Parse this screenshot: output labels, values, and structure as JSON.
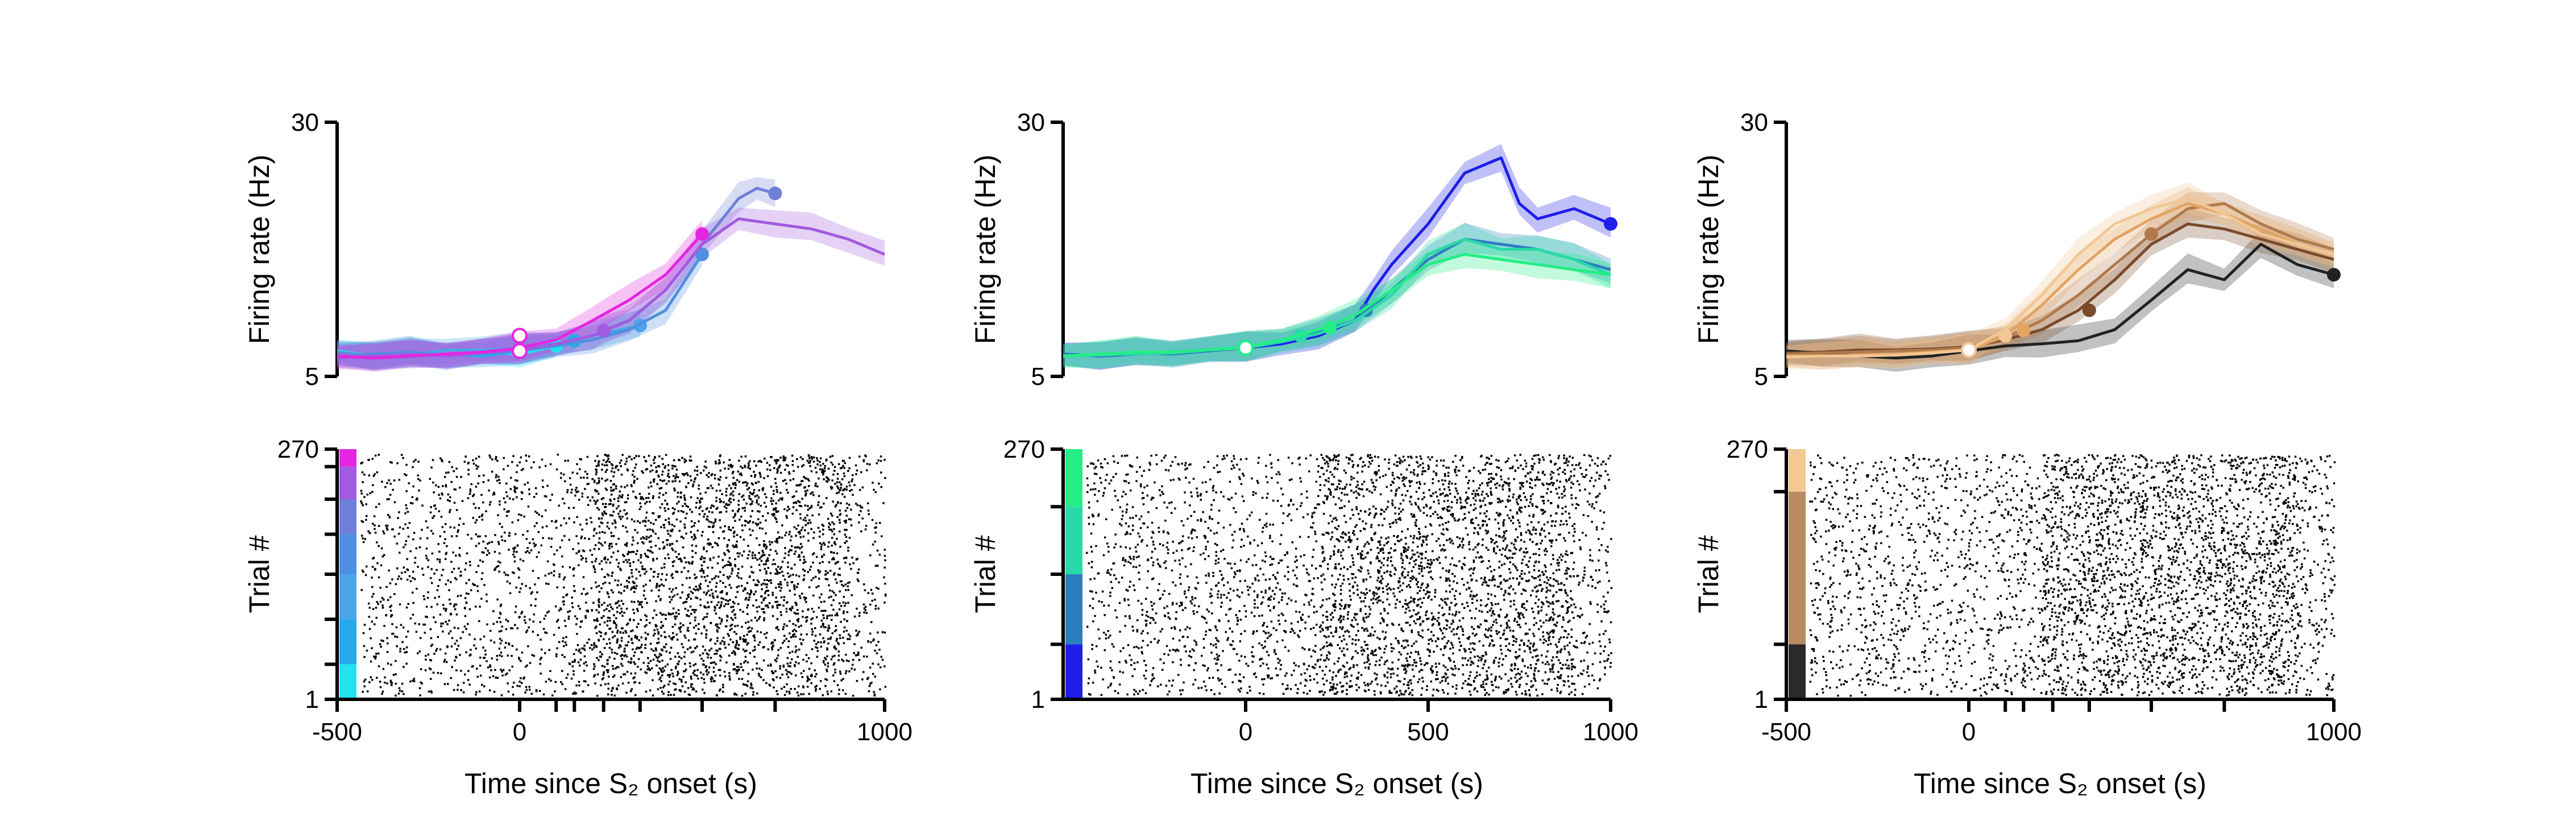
{
  "figure": {
    "panels": [
      {
        "id": "left",
        "psth": {
          "ylabel": "Firing rate (Hz)",
          "yticks": [
            "5",
            "30"
          ],
          "ylim": [
            5,
            30
          ],
          "xlim": [
            -500,
            1000
          ],
          "xtick_values": [
            -500,
            0,
            100,
            150,
            230,
            330,
            500,
            700,
            1000
          ],
          "series": [
            {
              "color": "#22e1f0",
              "end_ms": 100,
              "ts": [
                -500,
                -400,
                -300,
                -200,
                -100,
                0,
                100
              ],
              "rates": [
                7.5,
                7.0,
                7.3,
                7.0,
                7.4,
                7.2,
                8.0
              ],
              "marker": [
                100,
                8.0
              ]
            },
            {
              "color": "#28a9ea",
              "end_ms": 150,
              "ts": [
                -500,
                -400,
                -300,
                -200,
                -100,
                0,
                150
              ],
              "rates": [
                7.2,
                6.9,
                7.0,
                7.2,
                7.0,
                7.5,
                8.5
              ],
              "marker": [
                150,
                8.5
              ]
            },
            {
              "color": "#4aa4e6",
              "end_ms": 330,
              "ts": [
                -500,
                -400,
                -300,
                -200,
                -100,
                0,
                100,
                200,
                330
              ],
              "rates": [
                7.4,
                7.0,
                7.1,
                7.6,
                7.6,
                7.8,
                8.2,
                9.0,
                10.0
              ],
              "marker": [
                330,
                10.0
              ]
            },
            {
              "color": "#4f8fe0",
              "end_ms": 500,
              "ts": [
                -500,
                -400,
                -300,
                -200,
                -100,
                0,
                100,
                200,
                300,
                400,
                500
              ],
              "rates": [
                7.0,
                7.2,
                7.4,
                7.1,
                7.3,
                7.5,
                8.0,
                8.6,
                9.6,
                11.5,
                17.0
              ],
              "marker": [
                500,
                17.0
              ]
            },
            {
              "color": "#6f7fd8",
              "end_ms": 700,
              "ts": [
                -500,
                -400,
                -300,
                -200,
                -100,
                0,
                100,
                200,
                300,
                400,
                500,
                600,
                650,
                700
              ],
              "rates": [
                7.3,
                7.0,
                6.9,
                7.2,
                7.4,
                7.6,
                8.2,
                9.0,
                10.5,
                13.5,
                18.0,
                22.5,
                23.5,
                23.0
              ],
              "marker": [
                700,
                23.0
              ]
            },
            {
              "color": "#a25ae0",
              "end_ms": 1000,
              "ts": [
                -500,
                -400,
                -300,
                -200,
                -100,
                0,
                100,
                200,
                230,
                300,
                400,
                500,
                600,
                700,
                800,
                900,
                1000
              ],
              "rates": [
                6.8,
                7.0,
                7.2,
                7.0,
                7.3,
                7.6,
                8.2,
                9.0,
                9.5,
                10.5,
                13.5,
                18.0,
                20.5,
                20.0,
                19.5,
                18.5,
                17.0
              ],
              "marker": [
                230,
                9.5
              ]
            },
            {
              "color": "#e426e0",
              "end_ms": 500,
              "ts": [
                -500,
                -400,
                -300,
                -200,
                -100,
                0,
                100,
                200,
                300,
                400,
                500
              ],
              "rates": [
                7.0,
                6.8,
                7.0,
                7.2,
                7.4,
                7.8,
                8.6,
                10.5,
                12.5,
                15.0,
                19.0
              ],
              "marker": [
                500,
                19.0
              ]
            }
          ],
          "open_marker_rates": [
            9.0,
            7.5
          ]
        },
        "raster": {
          "ylabel": "Trial #",
          "yticks": [
            "1",
            "270"
          ],
          "xlabel": "Time since S₂ onset (s)",
          "xticks": [
            "-500",
            "0",
            "1000"
          ],
          "trial_bands": [
            {
              "from": 0.0,
              "to": 0.14,
              "color": "#22e1f0"
            },
            {
              "from": 0.14,
              "to": 0.32,
              "color": "#28a9ea"
            },
            {
              "from": 0.32,
              "to": 0.5,
              "color": "#4aa4e6"
            },
            {
              "from": 0.5,
              "to": 0.66,
              "color": "#4f8fe0"
            },
            {
              "from": 0.66,
              "to": 0.8,
              "color": "#6f7fd8"
            },
            {
              "from": 0.8,
              "to": 0.93,
              "color": "#a25ae0"
            },
            {
              "from": 0.93,
              "to": 1.0,
              "color": "#e426e0"
            }
          ]
        }
      },
      {
        "id": "middle",
        "psth": {
          "ylabel": "Firing rate (Hz)",
          "yticks": [
            "5",
            "30"
          ],
          "ylim": [
            5,
            30
          ],
          "xlim": [
            -500,
            1000
          ],
          "xtick_values": [
            0,
            500,
            1000
          ],
          "series": [
            {
              "color": "#1e1ee8",
              "end_ms": 1000,
              "ts": [
                -500,
                -400,
                -300,
                -200,
                -100,
                0,
                100,
                200,
                300,
                350,
                400,
                500,
                600,
                700,
                750,
                800,
                900,
                1000
              ],
              "rates": [
                7.2,
                7.0,
                7.2,
                7.4,
                7.6,
                7.8,
                8.2,
                9.0,
                10.5,
                13.5,
                16.0,
                20.0,
                25.0,
                26.5,
                22.0,
                20.5,
                21.5,
                20.0
              ],
              "marker": [
                1000,
                20.0
              ]
            },
            {
              "color": "#2c7fbf",
              "end_ms": 1000,
              "ts": [
                -500,
                -400,
                -300,
                -200,
                -100,
                0,
                100,
                200,
                300,
                400,
                500,
                600,
                700,
                800,
                900,
                1000
              ],
              "rates": [
                7.2,
                7.0,
                7.3,
                7.2,
                7.5,
                7.8,
                8.6,
                9.4,
                10.5,
                13.5,
                16.5,
                18.5,
                18.0,
                17.5,
                16.5,
                15.5
              ],
              "marker": [
                330,
                11.5
              ]
            },
            {
              "color": "#29d9a8",
              "end_ms": 1000,
              "ts": [
                -500,
                -400,
                -300,
                -200,
                -100,
                0,
                100,
                200,
                300,
                400,
                500,
                600,
                700,
                800,
                900,
                1000
              ],
              "rates": [
                7.0,
                7.1,
                7.2,
                7.3,
                7.6,
                7.8,
                8.4,
                9.2,
                10.5,
                13.0,
                17.0,
                18.5,
                17.5,
                17.5,
                16.5,
                15.0
              ],
              "marker": [
                150,
                9.0
              ]
            },
            {
              "color": "#23ee85",
              "end_ms": 1000,
              "ts": [
                -500,
                -400,
                -300,
                -200,
                -100,
                0,
                100,
                200,
                300,
                400,
                500,
                600,
                700,
                800,
                900,
                1000
              ],
              "rates": [
                7.0,
                7.2,
                7.4,
                7.4,
                7.6,
                7.9,
                8.6,
                9.6,
                11.0,
                13.5,
                16.0,
                17.0,
                16.5,
                16.0,
                15.5,
                15.0
              ],
              "marker": [
                230,
                9.8
              ]
            }
          ],
          "open_marker_rates": [
            7.8
          ]
        },
        "raster": {
          "ylabel": "Trial #",
          "yticks": [
            "1",
            "270"
          ],
          "xlabel": "Time since S₂ onset (s)",
          "xticks": [
            "0",
            "500",
            "1000"
          ],
          "trial_bands": [
            {
              "from": 0.0,
              "to": 0.22,
              "color": "#1e1ee8"
            },
            {
              "from": 0.22,
              "to": 0.5,
              "color": "#2c7fbf"
            },
            {
              "from": 0.5,
              "to": 0.77,
              "color": "#29d9a8"
            },
            {
              "from": 0.77,
              "to": 1.0,
              "color": "#23ee85"
            }
          ]
        }
      },
      {
        "id": "right",
        "psth": {
          "ylabel": "Firing rate (Hz)",
          "yticks": [
            "5",
            "30"
          ],
          "ylim": [
            5,
            30
          ],
          "xlim": [
            -500,
            1000
          ],
          "xtick_values": [
            -500,
            0,
            100,
            150,
            230,
            330,
            500,
            700,
            1000
          ],
          "series": [
            {
              "color": "#222222",
              "end_ms": 1000,
              "ts": [
                -500,
                -400,
                -300,
                -200,
                -100,
                0,
                100,
                200,
                300,
                400,
                500,
                600,
                700,
                800,
                900,
                1000
              ],
              "rates": [
                7.5,
                7.3,
                7.0,
                6.8,
                7.0,
                7.5,
                8.0,
                8.2,
                8.5,
                9.6,
                12.5,
                15.5,
                14.5,
                18.0,
                16.0,
                15.0
              ],
              "marker": [
                1000,
                15.0
              ]
            },
            {
              "color": "#7a4a2c",
              "end_ms": 1000,
              "ts": [
                -500,
                -400,
                -300,
                -200,
                -100,
                0,
                100,
                200,
                300,
                400,
                500,
                600,
                700,
                800,
                900,
                1000
              ],
              "rates": [
                7.3,
                7.4,
                7.6,
                7.6,
                7.7,
                7.9,
                8.6,
                9.6,
                11.5,
                14.5,
                18.0,
                20.0,
                19.5,
                18.5,
                17.5,
                16.5
              ],
              "marker": [
                330,
                11.5
              ]
            },
            {
              "color": "#b07a4c",
              "end_ms": 1000,
              "ts": [
                -500,
                -400,
                -300,
                -200,
                -100,
                0,
                100,
                200,
                300,
                400,
                500,
                600,
                700,
                800,
                900,
                1000
              ],
              "rates": [
                7.2,
                7.3,
                7.4,
                7.5,
                7.6,
                7.8,
                8.8,
                10.5,
                13.0,
                16.0,
                19.0,
                21.5,
                22.0,
                20.0,
                18.5,
                17.5
              ],
              "marker": [
                500,
                19.0
              ]
            },
            {
              "color": "#e2a463",
              "end_ms": 1000,
              "ts": [
                -500,
                -400,
                -300,
                -200,
                -100,
                0,
                100,
                200,
                300,
                400,
                500,
                600,
                700,
                800,
                900,
                1000
              ],
              "rates": [
                7.0,
                7.0,
                7.1,
                7.2,
                7.4,
                7.6,
                9.0,
                12.0,
                15.5,
                18.5,
                20.5,
                22.0,
                21.0,
                19.5,
                18.0,
                17.0
              ],
              "marker": [
                150,
                9.5
              ]
            },
            {
              "color": "#f2c794",
              "end_ms": 1000,
              "ts": [
                -500,
                -400,
                -300,
                -200,
                -100,
                0,
                100,
                200,
                300,
                400,
                500,
                600,
                700,
                800,
                900,
                1000
              ],
              "rates": [
                6.9,
                7.0,
                7.0,
                7.1,
                7.3,
                7.6,
                9.6,
                13.0,
                17.0,
                20.0,
                21.5,
                22.5,
                21.0,
                19.0,
                18.0,
                17.0
              ],
              "marker": [
                100,
                9.0
              ]
            }
          ],
          "open_marker_rates": [
            7.6
          ]
        },
        "raster": {
          "ylabel": "Trial #",
          "yticks": [
            "1",
            "270"
          ],
          "xlabel": "Time since S₂ onset (s)",
          "xticks": [
            "-500",
            "0",
            "1000"
          ],
          "trial_bands": [
            {
              "from": 0.0,
              "to": 0.22,
              "color": "#2a2a2a"
            },
            {
              "from": 0.22,
              "to": 0.83,
              "color": "#b88a62"
            },
            {
              "from": 0.83,
              "to": 1.0,
              "color": "#f3c893"
            }
          ]
        }
      }
    ]
  },
  "chart_data": [
    {
      "type": "line",
      "panel": "left-psth",
      "ylabel": "Firing rate (Hz)",
      "ylim": [
        5,
        30
      ],
      "xlim": [
        -500,
        1000
      ],
      "series_colors": [
        "#22e1f0",
        "#28a9ea",
        "#4aa4e6",
        "#4f8fe0",
        "#6f7fd8",
        "#a25ae0",
        "#e426e0"
      ]
    },
    {
      "type": "line",
      "panel": "middle-psth",
      "ylabel": "Firing rate (Hz)",
      "ylim": [
        5,
        30
      ],
      "xlim": [
        -500,
        1000
      ],
      "series_colors": [
        "#1e1ee8",
        "#2c7fbf",
        "#29d9a8",
        "#23ee85"
      ]
    },
    {
      "type": "line",
      "panel": "right-psth",
      "ylabel": "Firing rate (Hz)",
      "ylim": [
        5,
        30
      ],
      "xlim": [
        -500,
        1000
      ],
      "series_colors": [
        "#222222",
        "#7a4a2c",
        "#b07a4c",
        "#e2a463",
        "#f2c794"
      ]
    },
    {
      "type": "scatter",
      "panel": "rasters",
      "ylabel": "Trial #",
      "xlabel": "Time since S₂ onset (s)",
      "ylim": [
        1,
        270
      ],
      "xlim": [
        -500,
        1000
      ]
    }
  ]
}
